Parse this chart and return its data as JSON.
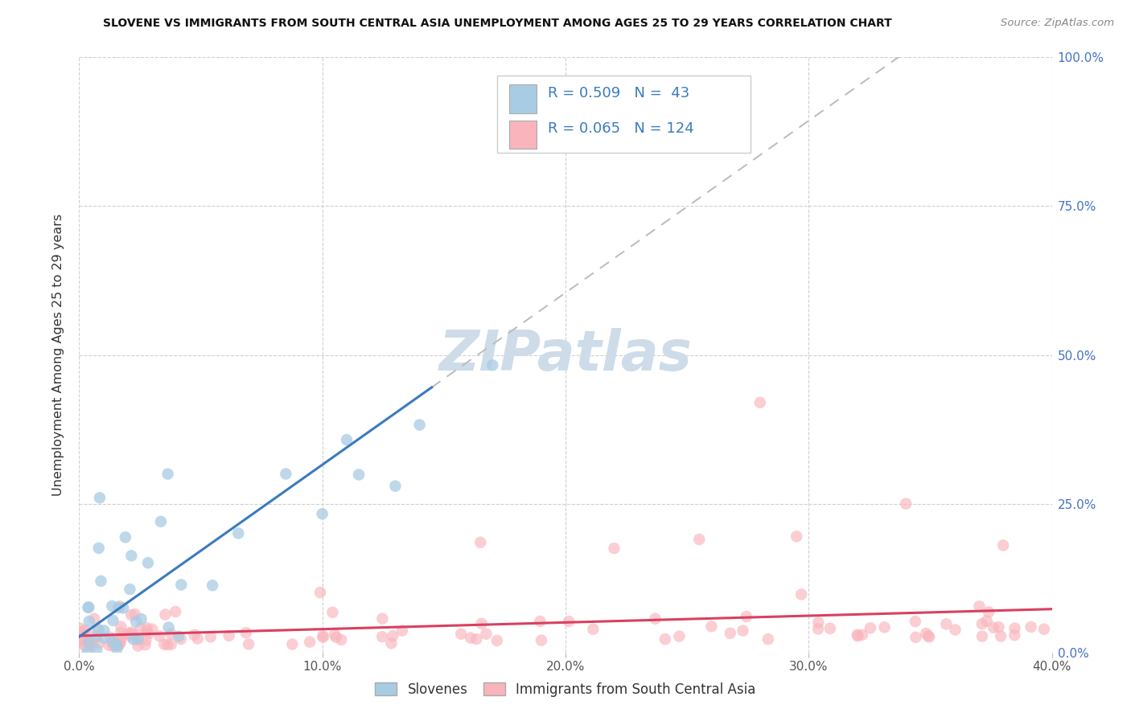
{
  "title": "SLOVENE VS IMMIGRANTS FROM SOUTH CENTRAL ASIA UNEMPLOYMENT AMONG AGES 25 TO 29 YEARS CORRELATION CHART",
  "source": "Source: ZipAtlas.com",
  "ylabel": "Unemployment Among Ages 25 to 29 years",
  "xlim": [
    0.0,
    0.4
  ],
  "ylim": [
    0.0,
    1.0
  ],
  "xtick_vals": [
    0.0,
    0.1,
    0.2,
    0.3,
    0.4
  ],
  "ytick_vals": [
    0.0,
    0.25,
    0.5,
    0.75,
    1.0
  ],
  "blue_fill": "#a8cce4",
  "blue_line": "#3a7bbf",
  "pink_fill": "#f9b4bc",
  "pink_line": "#d94060",
  "dash_color": "#bbbbbb",
  "watermark_color": "#cddce8",
  "legend_color": "#3a7bbf",
  "right_tick_color": "#4472C4",
  "legend_R1": "0.509",
  "legend_N1": "43",
  "legend_R2": "0.065",
  "legend_N2": "124",
  "label1": "Slovenes",
  "label2": "Immigrants from South Central Asia",
  "blue_slope": 2.8,
  "blue_intercept": 0.01,
  "blue_line_xmax": 0.145,
  "pink_slope": 0.04,
  "pink_intercept": 0.025
}
